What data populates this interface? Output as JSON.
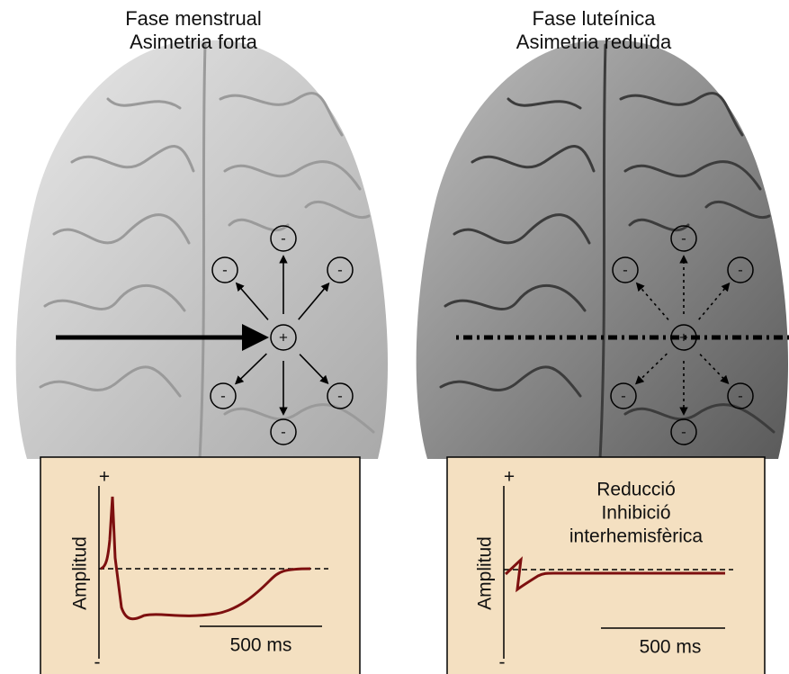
{
  "panels": [
    {
      "title": [
        "Fase menstrual",
        "Asimetria forta"
      ],
      "signs": {
        "center": "+",
        "outer": [
          "-",
          "-",
          "-",
          "-",
          "-",
          "-"
        ]
      },
      "plot": {
        "y_top": "+",
        "y_bottom": "-",
        "y_label": "Amplitud",
        "scale_label": "500 ms"
      }
    },
    {
      "title": [
        "Fase luteínica",
        "Asimetria reduïda"
      ],
      "signs": {
        "center": "+",
        "outer": [
          "-",
          "-",
          "-",
          "-",
          "-",
          "-"
        ]
      },
      "plot": {
        "y_top": "+",
        "y_bottom": "-",
        "y_label": "Amplitud",
        "scale_label": "500 ms",
        "annotation": [
          "Reducció",
          "Inhibició",
          "interhemisfèrica"
        ]
      }
    }
  ]
}
